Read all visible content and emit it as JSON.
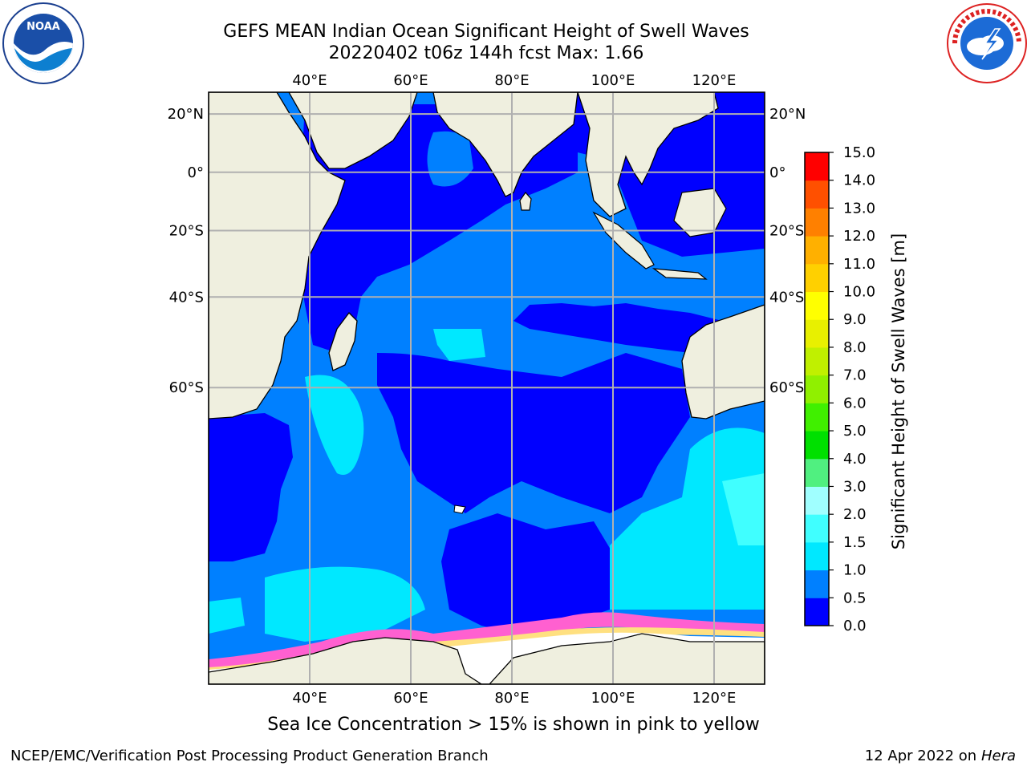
{
  "header": {
    "title_line1": "GEFS MEAN Indian Ocean Significant Height of Swell Waves",
    "title_line2": "20220402 t06z 144h fcst   Max: 1.66"
  },
  "logos": {
    "left": {
      "icon": "noaa-logo-icon",
      "text": "NOAA",
      "ring_text": "NATIONAL OCEANIC AND ATMOSPHERIC ADMINISTRATION · U.S. DEPARTMENT OF COMMERCE"
    },
    "right": {
      "icon": "nws-logo-icon",
      "ring_text": "NATIONAL WEATHER SERVICE"
    }
  },
  "map": {
    "lon_range": [
      20,
      130
    ],
    "lat_range": [
      -85,
      27
    ],
    "lon_ticks": [
      {
        "value": 40,
        "label": "40°E"
      },
      {
        "value": 60,
        "label": "60°E"
      },
      {
        "value": 80,
        "label": "80°E"
      },
      {
        "value": 100,
        "label": "100°E"
      },
      {
        "value": 120,
        "label": "120°E"
      }
    ],
    "lat_ticks": [
      {
        "value": 20,
        "label": "20°N"
      },
      {
        "value": 0,
        "label": "0°"
      },
      {
        "value": -20,
        "label": "20°S"
      },
      {
        "value": -40,
        "label": "40°S"
      },
      {
        "value": -60,
        "label": "60°S"
      }
    ],
    "grid": true,
    "colors": {
      "land": "#efefdf",
      "ocean_low": "#0000ff",
      "ocean_mid": "#0080ff",
      "ocean_high": "#00ffff",
      "ice": "#ffffff"
    }
  },
  "colorbar": {
    "label": "Significant Height of Swell Waves [m]",
    "ticks": [
      "0.0",
      "0.5",
      "1.0",
      "1.5",
      "2.0",
      "3.0",
      "4.0",
      "5.0",
      "6.0",
      "7.0",
      "8.0",
      "9.0",
      "10.0",
      "11.0",
      "12.0",
      "13.0",
      "14.0",
      "15.0"
    ],
    "colors": [
      "#0000ff",
      "#0080ff",
      "#00e8ff",
      "#40ffff",
      "#a0ffff",
      "#50f080",
      "#00e000",
      "#40f000",
      "#90f000",
      "#c0f000",
      "#e8f000",
      "#ffff00",
      "#ffd000",
      "#ffb000",
      "#ff8000",
      "#ff5000",
      "#ff0000"
    ]
  },
  "notes": {
    "ice": "Sea Ice Concentration > 15% is shown in pink to yellow"
  },
  "footer": {
    "left": "NCEP/EMC/Verification Post Processing Product Generation Branch",
    "date": "12 Apr 2022 on",
    "machine": "Hera"
  }
}
